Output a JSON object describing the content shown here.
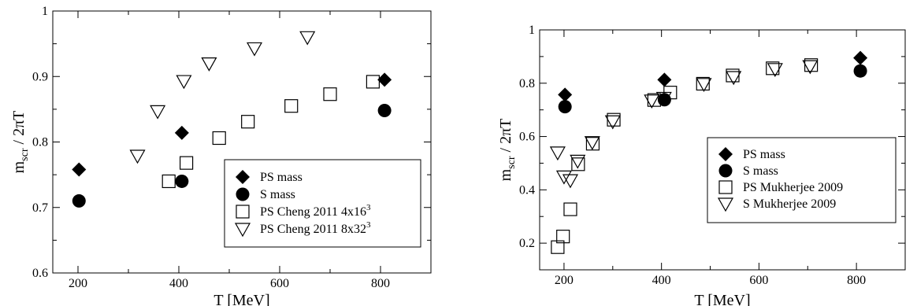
{
  "chart_data": [
    {
      "type": "scatter",
      "xlabel": "T [MeV]",
      "ylabel": "m",
      "ylabel_sub": "scr",
      "ylabel_rest": " / 2πT",
      "xlim": [
        150,
        900
      ],
      "ylim": [
        0.6,
        1.0
      ],
      "xticks": [
        200,
        400,
        600,
        800
      ],
      "yticks": [
        0.6,
        0.7,
        0.8,
        0.9,
        1.0
      ],
      "xtick_labels": [
        "200",
        "400",
        "600",
        "800"
      ],
      "ytick_labels": [
        "0.6",
        "0.7",
        "0.8",
        "0.9",
        "1"
      ],
      "grid": false,
      "legend_position": "bottom-right",
      "series": [
        {
          "name": "PS mass",
          "marker": "diamond",
          "x": [
            202,
            406,
            808
          ],
          "y": [
            0.758,
            0.814,
            0.895
          ]
        },
        {
          "name": "S mass",
          "marker": "circle",
          "x": [
            202,
            406,
            808
          ],
          "y": [
            0.71,
            0.74,
            0.848
          ]
        },
        {
          "name": "PS Cheng 2011 4x16",
          "name_sup": "3",
          "marker": "square",
          "x": [
            380,
            415,
            480,
            537,
            623,
            700,
            785
          ],
          "y": [
            0.74,
            0.768,
            0.806,
            0.831,
            0.855,
            0.873,
            0.892
          ]
        },
        {
          "name": "PS Cheng 2011 8x32",
          "name_sup": "3",
          "marker": "triangle-down",
          "x": [
            318,
            358,
            410,
            460,
            550,
            655
          ],
          "y": [
            0.779,
            0.847,
            0.893,
            0.92,
            0.943,
            0.96
          ]
        }
      ]
    },
    {
      "type": "scatter",
      "xlabel": "T [MeV]",
      "ylabel": "m",
      "ylabel_sub": "scr",
      "ylabel_rest": " / 2πT",
      "xlim": [
        150,
        900
      ],
      "ylim": [
        0.1,
        1.0
      ],
      "xticks": [
        200,
        400,
        600,
        800
      ],
      "yticks": [
        0.2,
        0.4,
        0.6,
        0.8,
        1.0
      ],
      "xtick_labels": [
        "200",
        "400",
        "600",
        "800"
      ],
      "ytick_labels": [
        "0.2",
        "0.4",
        "0.6",
        "0.8",
        "1"
      ],
      "grid": false,
      "legend_position": "center-right",
      "series": [
        {
          "name": "PS mass",
          "marker": "diamond",
          "x": [
            202,
            406,
            808
          ],
          "y": [
            0.757,
            0.813,
            0.895
          ]
        },
        {
          "name": "S mass",
          "marker": "circle",
          "x": [
            202,
            406,
            808
          ],
          "y": [
            0.712,
            0.738,
            0.846
          ]
        },
        {
          "name": "PS Mukherjee 2009",
          "marker": "square",
          "x": [
            187,
            198,
            213,
            229,
            259,
            302,
            385,
            418,
            485,
            546,
            628,
            707
          ],
          "y": [
            0.185,
            0.225,
            0.327,
            0.496,
            0.573,
            0.663,
            0.737,
            0.765,
            0.798,
            0.829,
            0.856,
            0.868
          ]
        },
        {
          "name": "S Mukherjee 2009",
          "marker": "triangle-down",
          "x": [
            187,
            200,
            213,
            228,
            258,
            300,
            380,
            405,
            487,
            548,
            633,
            705
          ],
          "y": [
            0.54,
            0.45,
            0.436,
            0.509,
            0.579,
            0.657,
            0.735,
            0.745,
            0.797,
            0.823,
            0.853,
            0.864
          ]
        }
      ]
    }
  ]
}
